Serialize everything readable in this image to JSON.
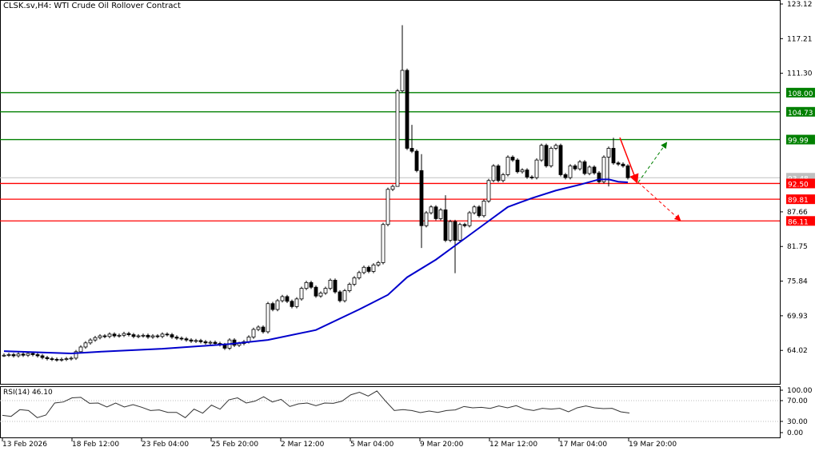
{
  "header": {
    "symbol": "CLSK.sv,H4:",
    "name": "WTI Crude Oil Rollover Contract"
  },
  "rsi_label": "RSI(14) 46.10",
  "colors": {
    "bull": "#ffffff",
    "bear": "#000000",
    "ma": "#0000cc",
    "support": "#ff0000",
    "resistance": "#008000",
    "current": "#c0c0c0"
  },
  "chart_data": {
    "type": "candlestick",
    "price_axis": {
      "min": 61.5,
      "max": 123.12,
      "ticks": [
        "123.12",
        "117.21",
        "111.30",
        "87.66",
        "81.75",
        "75.84",
        "69.93",
        "64.02"
      ]
    },
    "time_labels": [
      "13 Feb 2026",
      "18 Feb 12:00",
      "23 Feb 04:00",
      "25 Feb 20:00",
      "2 Mar 12:00",
      "5 Mar 04:00",
      "9 Mar 20:00",
      "12 Mar 12:00",
      "17 Mar 04:00",
      "19 Mar 20:00"
    ],
    "closes": [
      63.2,
      63.3,
      63.1,
      63.4,
      63.2,
      63.5,
      63.3,
      63.1,
      62.8,
      62.6,
      62.5,
      62.4,
      62.5,
      62.6,
      62.7,
      63.8,
      64.6,
      65.3,
      65.8,
      66.2,
      66.5,
      66.4,
      66.8,
      66.5,
      66.6,
      66.9,
      66.7,
      66.4,
      66.5,
      66.6,
      66.3,
      66.5,
      66.4,
      66.8,
      66.7,
      66.3,
      66.1,
      66.0,
      65.8,
      65.6,
      65.7,
      65.5,
      65.3,
      65.4,
      65.2,
      65.0,
      64.4,
      65.8,
      64.9,
      65.2,
      65.5,
      66.3,
      67.6,
      68.0,
      67.2,
      72.0,
      71.0,
      72.5,
      73.2,
      72.4,
      71.5,
      72.8,
      74.6,
      75.6,
      74.8,
      73.3,
      73.8,
      74.6,
      76.0,
      74.0,
      72.5,
      74.2,
      75.3,
      76.4,
      77.3,
      78.2,
      77.5,
      78.6,
      79.0,
      85.5,
      91.5,
      92.0,
      108.3,
      111.8,
      98.5,
      98.0,
      94.7,
      85.3,
      87.5,
      88.5,
      86.5,
      88.0,
      82.8,
      86.0,
      82.8,
      85.5,
      85.3,
      87.5,
      88.5,
      87.0,
      89.5,
      93.0,
      95.5,
      93.0,
      94.0,
      97.0,
      96.5,
      94.5,
      94.8,
      93.6,
      93.5,
      96.5,
      99.0,
      95.5,
      98.5,
      99.0,
      94.0,
      93.5,
      95.5,
      95.0,
      96.2,
      94.2,
      95.3,
      94.3,
      92.8,
      97.0,
      98.5,
      96.0,
      95.8,
      95.5,
      93.48
    ],
    "spike_highs": {
      "83": 119.5,
      "85": 102.5,
      "87": 97.5,
      "92": 90.5,
      "127": 100.3
    },
    "spike_lows": {
      "82": 104.0,
      "87": 81.5,
      "94": 77.2,
      "126": 92.0
    },
    "moving_average": [
      [
        0,
        63.9
      ],
      [
        14,
        63.5
      ],
      [
        20,
        63.8
      ],
      [
        33,
        64.3
      ],
      [
        47,
        65.1
      ],
      [
        55,
        65.8
      ],
      [
        65,
        67.5
      ],
      [
        74,
        71.0
      ],
      [
        80,
        73.5
      ],
      [
        84,
        76.5
      ],
      [
        90,
        79.5
      ],
      [
        95,
        82.5
      ],
      [
        100,
        85.5
      ],
      [
        105,
        88.5
      ],
      [
        110,
        90.0
      ],
      [
        115,
        91.3
      ],
      [
        120,
        92.3
      ],
      [
        124,
        93.2
      ],
      [
        126,
        93.2
      ],
      [
        128,
        92.8
      ],
      [
        130,
        92.7
      ]
    ],
    "levels": [
      {
        "price": 108.0,
        "label": "108.00",
        "kind": "resistance"
      },
      {
        "price": 104.73,
        "label": "104.73",
        "kind": "resistance"
      },
      {
        "price": 99.99,
        "label": "99.99",
        "kind": "resistance"
      },
      {
        "price": 93.48,
        "label": "93.48",
        "kind": "current"
      },
      {
        "price": 92.5,
        "label": "92.50",
        "kind": "support"
      },
      {
        "price": 89.81,
        "label": "89.81",
        "kind": "support"
      },
      {
        "price": 86.11,
        "label": "86.11",
        "kind": "support"
      }
    ],
    "rsi": {
      "ticks": [
        "100.00",
        "70.00",
        "30.00",
        "0.00"
      ],
      "levels": [
        70,
        30
      ],
      "values": [
        41.8,
        39.7,
        52.6,
        51.0,
        37.2,
        42.3,
        65.4,
        67.4,
        78.0,
        79.5,
        64.9,
        65.4,
        57.7,
        65.4,
        57.7,
        62.3,
        57.2,
        51.0,
        52.1,
        47.4,
        47.4,
        37.2,
        53.6,
        45.9,
        61.3,
        53.6,
        72.2,
        78.0,
        65.4,
        69.0,
        81.0,
        67.4,
        73.7,
        58.7,
        63.8,
        65.4,
        60.3,
        65.4,
        64.9,
        69.0,
        86.8,
        94.1,
        83.2,
        97.8,
        69.0,
        51.0,
        52.6,
        51.0,
        46.9,
        50.0,
        47.4,
        51.0,
        52.1,
        58.7,
        56.2,
        57.2,
        55.1,
        59.7,
        56.2,
        60.3,
        53.6,
        51.0,
        55.1,
        53.6,
        55.1,
        48.5,
        56.2,
        59.7,
        56.2,
        54.6,
        55.1,
        48.5,
        46.1
      ]
    }
  }
}
